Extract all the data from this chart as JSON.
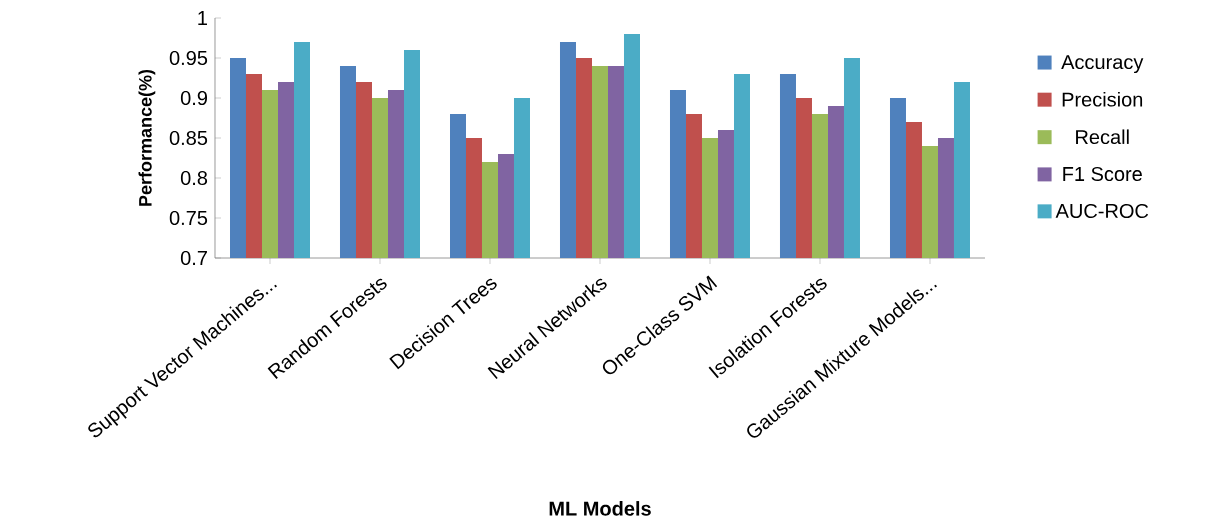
{
  "chart_data": {
    "type": "bar",
    "xlabel": "ML Models",
    "ylabel": "Performance(%)",
    "categories": [
      "Support Vector Machines...",
      "Random Forests",
      "Decision Trees",
      "Neural Networks",
      "One-Class SVM",
      "Isolation Forests",
      "Gaussian Mixture Models..."
    ],
    "series": [
      {
        "name": "Accuracy",
        "color": "#4f81bd",
        "values": [
          0.95,
          0.94,
          0.88,
          0.97,
          0.91,
          0.93,
          0.9
        ]
      },
      {
        "name": "Precision",
        "color": "#c0504d",
        "values": [
          0.93,
          0.92,
          0.85,
          0.95,
          0.88,
          0.9,
          0.87
        ]
      },
      {
        "name": "Recall",
        "color": "#9bbb59",
        "values": [
          0.91,
          0.9,
          0.82,
          0.94,
          0.85,
          0.88,
          0.84
        ]
      },
      {
        "name": "F1 Score",
        "color": "#8064a2",
        "values": [
          0.92,
          0.91,
          0.83,
          0.94,
          0.86,
          0.89,
          0.85
        ]
      },
      {
        "name": "AUC-ROC",
        "color": "#4bacc6",
        "values": [
          0.97,
          0.96,
          0.9,
          0.98,
          0.93,
          0.95,
          0.92
        ]
      }
    ],
    "ylim": [
      0.7,
      1
    ],
    "yticks": [
      0.7,
      0.75,
      0.8,
      0.85,
      0.9,
      0.95,
      1
    ],
    "grid": false,
    "legend": "right"
  }
}
